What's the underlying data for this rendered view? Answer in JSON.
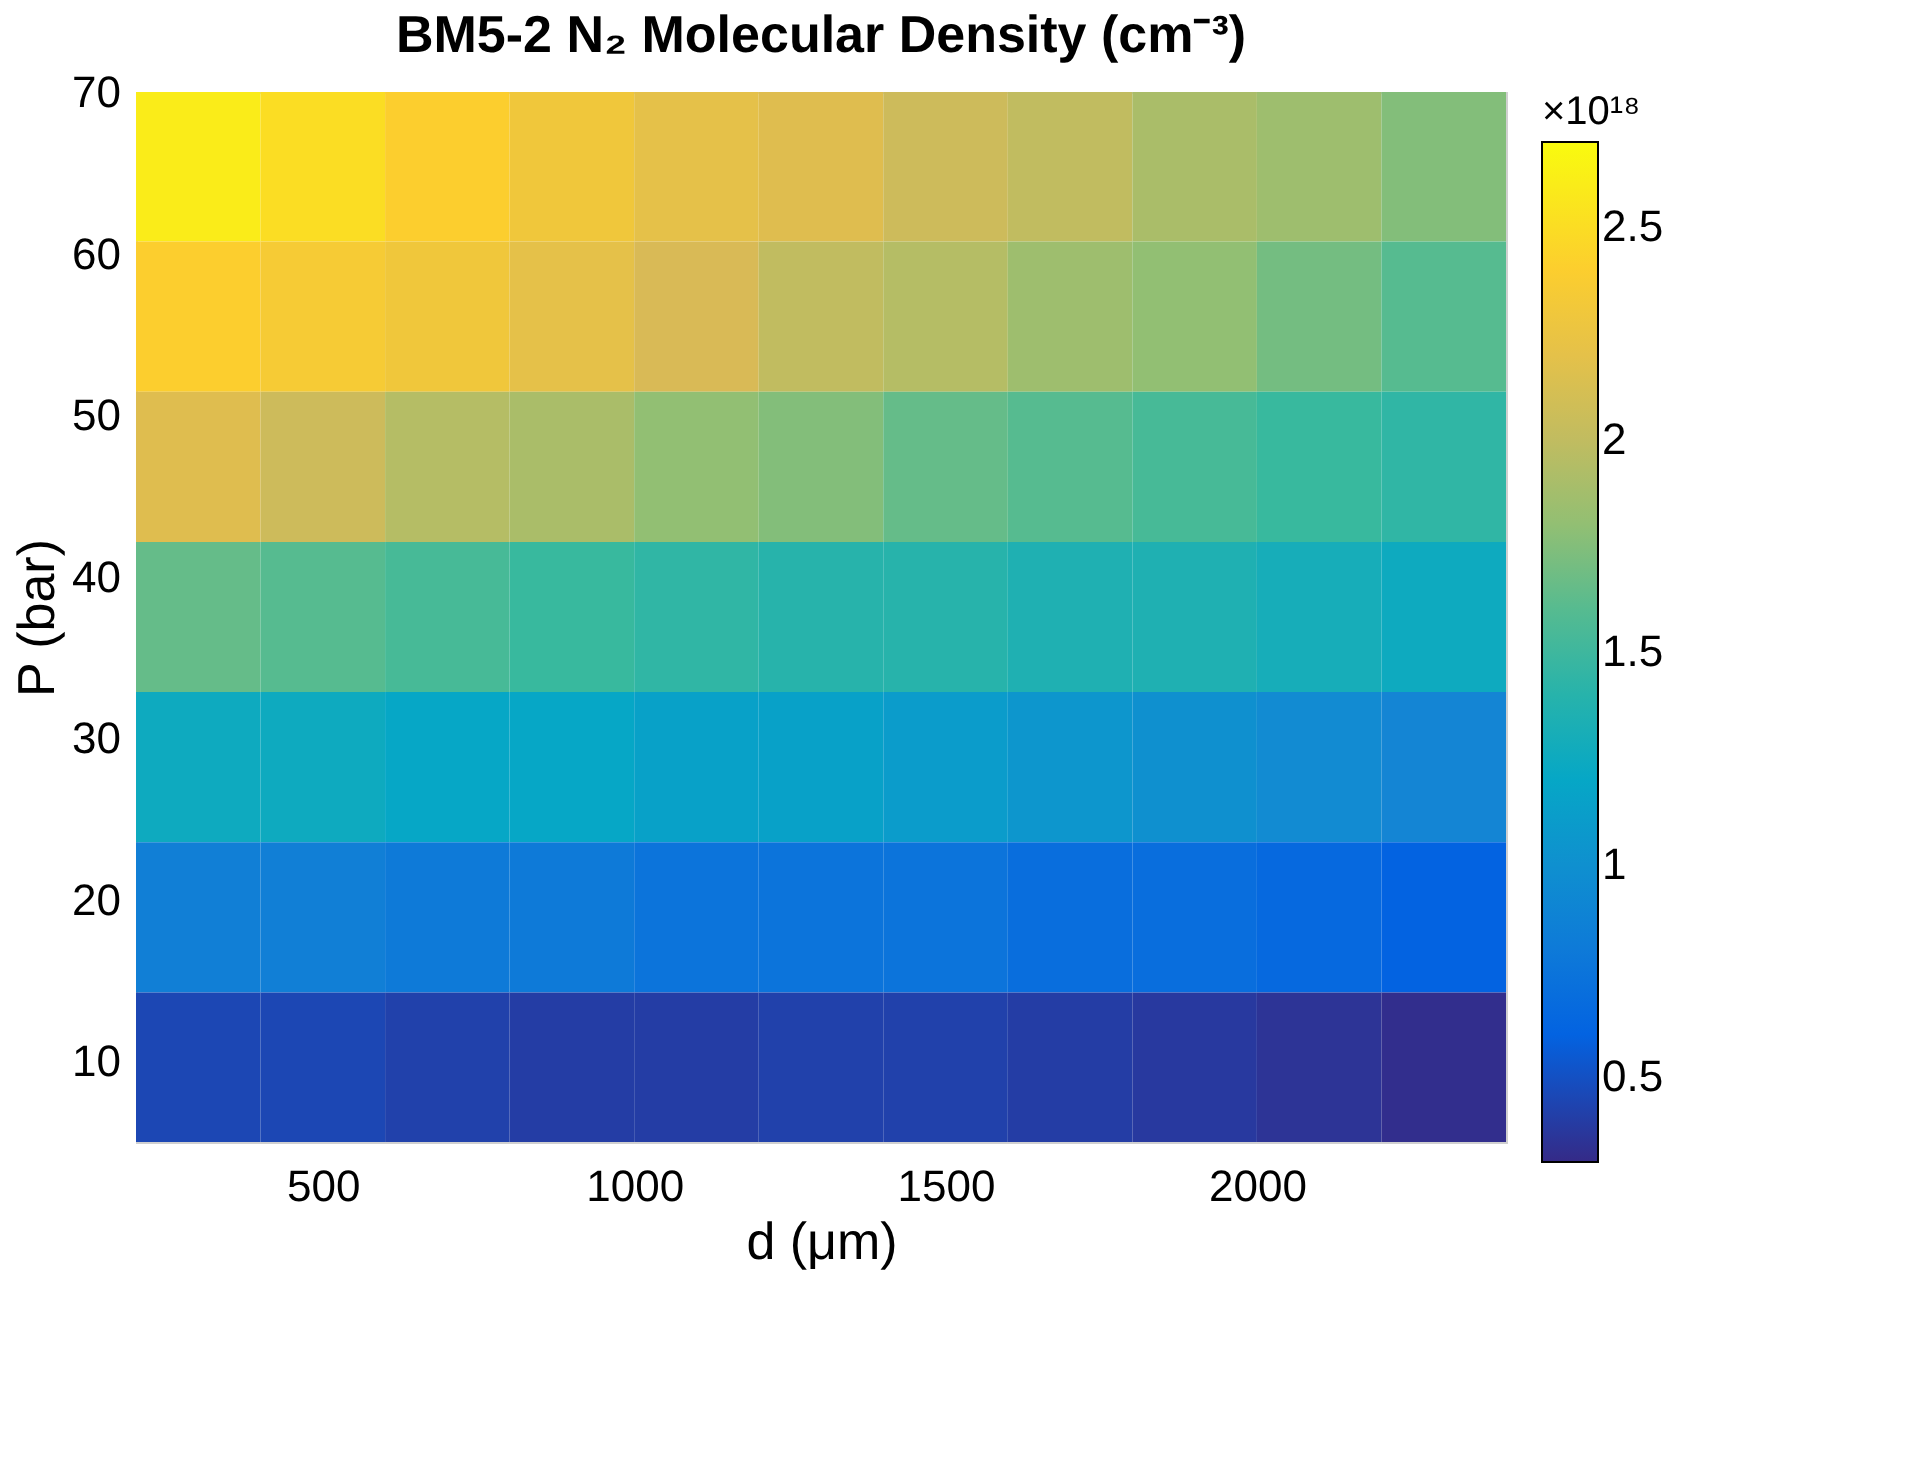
{
  "chart_data": {
    "type": "heatmap",
    "title": "BM5-2 N₂ Molecular Density (cm⁻³)",
    "xlabel": "d (μm)",
    "ylabel": "P (bar)",
    "clabel": "×10¹⁸",
    "x": [
      300,
      500,
      700,
      900,
      1100,
      1300,
      1500,
      1700,
      1900,
      2100,
      2300
    ],
    "y": [
      65.4,
      56.1,
      46.8,
      37.5,
      28.2,
      18.9,
      9.6
    ],
    "cells": [
      [
        2.6,
        2.5,
        2.4,
        2.3,
        2.2,
        2.15,
        2.05,
        2.0,
        1.9,
        1.85,
        1.75
      ],
      [
        2.4,
        2.35,
        2.3,
        2.2,
        2.1,
        2.0,
        1.95,
        1.85,
        1.8,
        1.7,
        1.6
      ],
      [
        2.15,
        2.05,
        1.95,
        1.9,
        1.8,
        1.75,
        1.65,
        1.6,
        1.55,
        1.5,
        1.45
      ],
      [
        1.65,
        1.6,
        1.55,
        1.5,
        1.45,
        1.4,
        1.4,
        1.35,
        1.35,
        1.3,
        1.25
      ],
      [
        1.25,
        1.25,
        1.2,
        1.2,
        1.15,
        1.15,
        1.1,
        1.05,
        1.0,
        0.95,
        0.9
      ],
      [
        0.85,
        0.85,
        0.8,
        0.8,
        0.75,
        0.75,
        0.75,
        0.7,
        0.7,
        0.65,
        0.6
      ],
      [
        0.45,
        0.45,
        0.42,
        0.4,
        0.4,
        0.42,
        0.42,
        0.4,
        0.38,
        0.35,
        0.32
      ]
    ],
    "xlim": [
      200,
      2400
    ],
    "xticks": [
      500,
      1000,
      1500,
      2000
    ],
    "ylim": [
      5,
      70
    ],
    "yticks": [
      10,
      20,
      30,
      40,
      50,
      60,
      70
    ],
    "clim": [
      0.3,
      2.7
    ],
    "cticks": [
      0.5,
      1,
      1.5,
      2,
      2.5
    ]
  }
}
